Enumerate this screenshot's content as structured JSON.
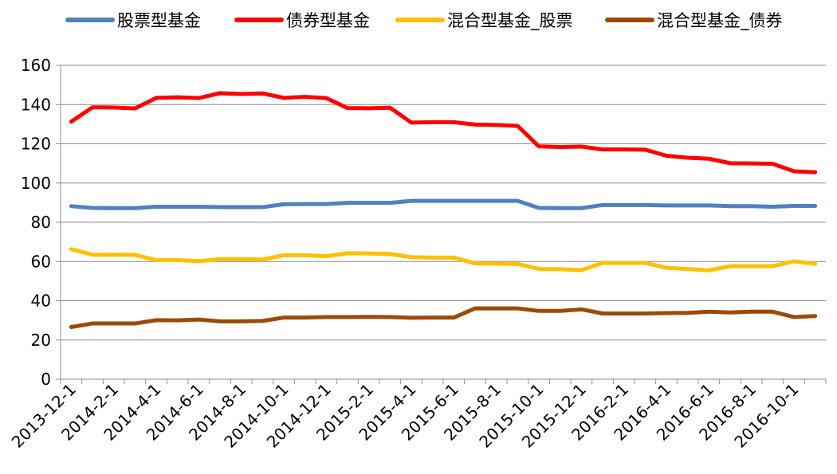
{
  "chart_data": {
    "type": "line",
    "title": "",
    "xlabel": "",
    "ylabel": "",
    "ylim": [
      0,
      160
    ],
    "yticks": [
      0,
      20,
      40,
      60,
      80,
      100,
      120,
      140,
      160
    ],
    "grid": "horizontal",
    "legend_position": "top",
    "x": [
      "2013-12-1",
      "2014-1-1",
      "2014-2-1",
      "2014-3-1",
      "2014-4-1",
      "2014-5-1",
      "2014-6-1",
      "2014-7-1",
      "2014-8-1",
      "2014-9-1",
      "2014-10-1",
      "2014-11-1",
      "2014-12-1",
      "2015-1-1",
      "2015-2-1",
      "2015-3-1",
      "2015-4-1",
      "2015-5-1",
      "2015-6-1",
      "2015-7-1",
      "2015-8-1",
      "2015-9-1",
      "2015-10-1",
      "2015-11-1",
      "2015-12-1",
      "2016-1-1",
      "2016-2-1",
      "2016-3-1",
      "2016-4-1",
      "2016-5-1",
      "2016-6-1",
      "2016-7-1",
      "2016-8-1",
      "2016-9-1",
      "2016-10-1",
      "2016-11-1"
    ],
    "x_tick_labels": [
      "2013-12-1",
      "2014-2-1",
      "2014-4-1",
      "2014-6-1",
      "2014-8-1",
      "2014-10-1",
      "2014-12-1",
      "2015-2-1",
      "2015-4-1",
      "2015-6-1",
      "2015-8-1",
      "2015-10-1",
      "2015-12-1",
      "2016-2-1",
      "2016-4-1",
      "2016-6-1",
      "2016-8-1",
      "2016-10-1"
    ],
    "series": [
      {
        "name": "股票型基金",
        "color": "#4F81BD",
        "values": [
          88.2,
          87.3,
          87.2,
          87.2,
          87.9,
          87.9,
          87.9,
          87.7,
          87.7,
          87.7,
          89.2,
          89.3,
          89.3,
          89.9,
          89.9,
          89.9,
          90.9,
          90.9,
          90.9,
          90.9,
          90.9,
          90.9,
          87.3,
          87.2,
          87.2,
          88.8,
          88.8,
          88.8,
          88.6,
          88.6,
          88.6,
          88.2,
          88.2,
          87.9,
          88.3,
          88.3
        ]
      },
      {
        "name": "债券型基金",
        "color": "#FF0000",
        "values": [
          131.3,
          138.6,
          138.5,
          138.0,
          143.4,
          143.7,
          143.3,
          145.8,
          145.4,
          145.7,
          143.4,
          143.9,
          143.3,
          138.2,
          138.1,
          138.4,
          130.8,
          131.0,
          131.0,
          129.8,
          129.6,
          129.1,
          118.7,
          118.4,
          118.6,
          117.1,
          117.1,
          117.0,
          113.9,
          112.9,
          112.4,
          110.1,
          110.0,
          109.8,
          106.0,
          105.5
        ]
      },
      {
        "name": "混合型基金_股票",
        "color": "#FFC000",
        "values": [
          66.3,
          63.5,
          63.4,
          63.4,
          60.7,
          60.7,
          60.2,
          61.2,
          61.2,
          61.0,
          63.2,
          63.2,
          62.7,
          64.2,
          64.1,
          63.8,
          62.2,
          62.0,
          62.0,
          59.0,
          58.9,
          58.8,
          56.2,
          56.1,
          55.6,
          59.3,
          59.3,
          59.3,
          56.8,
          56.2,
          55.5,
          57.6,
          57.6,
          57.6,
          60.1,
          58.8
        ]
      },
      {
        "name": "混合型基金_债券",
        "color": "#9C4A06",
        "values": [
          26.6,
          28.4,
          28.4,
          28.4,
          30.1,
          30.0,
          30.4,
          29.5,
          29.5,
          29.7,
          31.4,
          31.4,
          31.7,
          31.7,
          31.8,
          31.7,
          31.3,
          31.4,
          31.4,
          36.1,
          36.1,
          36.1,
          34.8,
          34.8,
          35.6,
          33.5,
          33.5,
          33.5,
          33.7,
          33.8,
          34.4,
          34.0,
          34.4,
          34.4,
          31.7,
          32.2
        ]
      }
    ]
  }
}
